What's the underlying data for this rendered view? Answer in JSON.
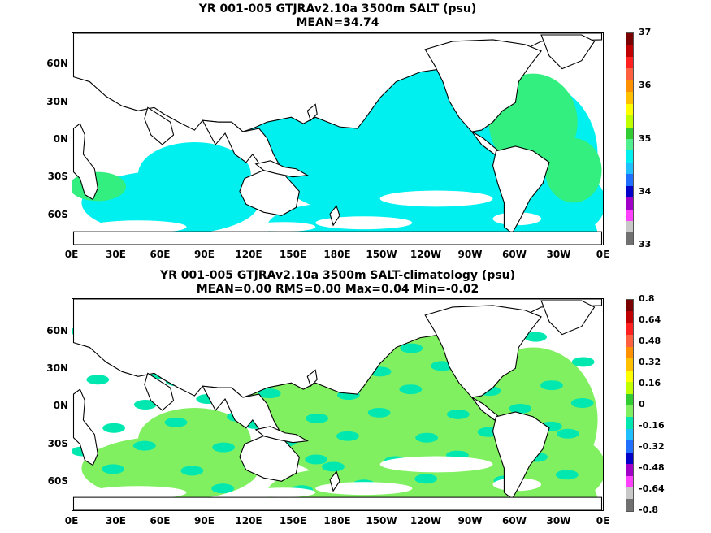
{
  "panels": [
    {
      "title_line1": "YR 001-005 GTJRAv2.10a 3500m SALT (psu)",
      "title_line2": "MEAN=34.74",
      "field_color": "#00efef",
      "patch_color": "#32ef80",
      "colorbar_labels": [
        "37",
        "36",
        "35",
        "34",
        "33"
      ],
      "colorbar_colors": [
        "#7a0000",
        "#c00000",
        "#ff2020",
        "#ff6040",
        "#ff9000",
        "#ffc000",
        "#ffff00",
        "#c0ff00",
        "#32cd32",
        "#50ef90",
        "#00efef",
        "#20c0ff",
        "#2070ff",
        "#0000c8",
        "#a000c8",
        "#ff40ff",
        "#c8c8c8",
        "#707070"
      ]
    },
    {
      "title_line1": "YR 001-005 GTJRAv2.10a 3500m SALT-climatology (psu)",
      "title_line2": "MEAN=0.00   RMS=0.00   Max=0.04   Min=-0.02",
      "field_color": "#80f060",
      "patch_color": "#00e8b0",
      "colorbar_labels": [
        "0.8",
        "0.64",
        "0.48",
        "0.32",
        "0.16",
        "0",
        "-0.16",
        "-0.32",
        "-0.48",
        "-0.64",
        "-0.8"
      ],
      "colorbar_colors": [
        "#7a0000",
        "#c00000",
        "#ff2020",
        "#ff6040",
        "#ff9000",
        "#ffc000",
        "#ffff00",
        "#c0ff00",
        "#32cd32",
        "#80f060",
        "#00e8b0",
        "#20c0ff",
        "#2070ff",
        "#0000c8",
        "#a000c8",
        "#ff40ff",
        "#c8c8c8",
        "#707070"
      ]
    }
  ],
  "axes": {
    "lat_labels": [
      "60N",
      "30N",
      "0N",
      "30S",
      "60S"
    ],
    "lon_labels": [
      "0E",
      "30E",
      "60E",
      "90E",
      "120E",
      "150E",
      "180E",
      "150W",
      "120W",
      "90W",
      "60W",
      "30W",
      "0E"
    ]
  }
}
